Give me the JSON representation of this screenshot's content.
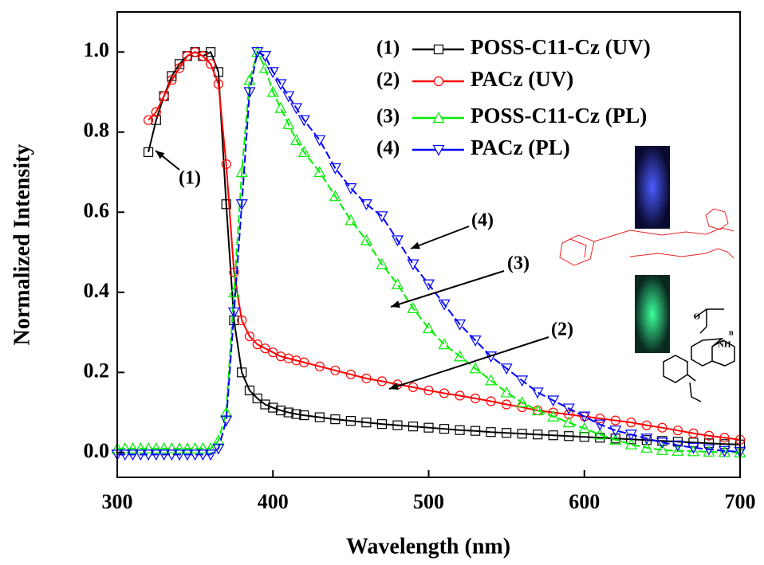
{
  "chart_data": {
    "type": "line",
    "x_label": "Wavelength (nm)",
    "y_label": "Normalized Intensity",
    "xlim": [
      300,
      700
    ],
    "xticks": [
      300,
      400,
      500,
      600,
      700
    ],
    "ylim": [
      -0.062,
      1.1
    ],
    "yticks": [
      {
        "value": 0,
        "label": "0.0"
      },
      {
        "value": 0.2,
        "label": "0.2"
      },
      {
        "value": 0.4,
        "label": "0.4"
      },
      {
        "value": 0.6,
        "label": "0.6"
      },
      {
        "value": 0.8,
        "label": "0.8"
      },
      {
        "value": 1.0,
        "label": "1.0"
      }
    ],
    "legend_position": "upper right",
    "series": [
      {
        "label": "(1)",
        "name": "POSS-C11-Cz (UV)",
        "color": "#000000",
        "marker": "square",
        "x": [
          320,
          325,
          330,
          335,
          340,
          345,
          350,
          355,
          360,
          365,
          370,
          375,
          380,
          385,
          390,
          395,
          400,
          405,
          410,
          415,
          420,
          430,
          440,
          450,
          460,
          470,
          480,
          490,
          500,
          510,
          520,
          530,
          540,
          550,
          560,
          570,
          580,
          590,
          600,
          610,
          620,
          630,
          640,
          650,
          660,
          670,
          680,
          690,
          700
        ],
        "values": [
          0.75,
          0.83,
          0.89,
          0.94,
          0.97,
          0.99,
          1.0,
          0.99,
          1.0,
          0.95,
          0.62,
          0.33,
          0.2,
          0.155,
          0.135,
          0.12,
          0.112,
          0.105,
          0.1,
          0.096,
          0.093,
          0.088,
          0.083,
          0.079,
          0.075,
          0.071,
          0.068,
          0.065,
          0.062,
          0.059,
          0.056,
          0.054,
          0.051,
          0.049,
          0.047,
          0.045,
          0.043,
          0.041,
          0.039,
          0.037,
          0.035,
          0.033,
          0.031,
          0.029,
          0.027,
          0.025,
          0.023,
          0.021,
          0.02
        ]
      },
      {
        "label": "(2)",
        "name": "PACz (UV)",
        "color": "#ff0000",
        "marker": "circle",
        "x": [
          320,
          325,
          330,
          335,
          340,
          345,
          350,
          355,
          360,
          365,
          370,
          375,
          380,
          385,
          390,
          395,
          400,
          405,
          410,
          415,
          420,
          430,
          440,
          450,
          460,
          470,
          480,
          490,
          500,
          510,
          520,
          530,
          540,
          550,
          560,
          570,
          580,
          590,
          600,
          610,
          620,
          630,
          640,
          650,
          660,
          670,
          680,
          690,
          700
        ],
        "values": [
          0.83,
          0.85,
          0.89,
          0.93,
          0.96,
          0.99,
          1.0,
          0.99,
          0.97,
          0.92,
          0.72,
          0.45,
          0.33,
          0.29,
          0.27,
          0.26,
          0.25,
          0.24,
          0.235,
          0.23,
          0.225,
          0.215,
          0.205,
          0.195,
          0.185,
          0.178,
          0.17,
          0.163,
          0.155,
          0.148,
          0.142,
          0.135,
          0.128,
          0.12,
          0.113,
          0.105,
          0.1,
          0.095,
          0.09,
          0.085,
          0.08,
          0.075,
          0.068,
          0.062,
          0.055,
          0.048,
          0.042,
          0.037,
          0.032
        ]
      },
      {
        "label": "(3)",
        "name": "POSS-C11-Cz (PL)",
        "color": "#00ee00",
        "marker": "triangle-up",
        "x": [
          300,
          305,
          310,
          315,
          320,
          325,
          330,
          335,
          340,
          345,
          350,
          355,
          360,
          365,
          370,
          375,
          380,
          385,
          390,
          395,
          400,
          405,
          410,
          415,
          420,
          430,
          440,
          450,
          460,
          470,
          480,
          490,
          500,
          510,
          520,
          530,
          540,
          550,
          560,
          570,
          580,
          590,
          600,
          610,
          620,
          630,
          640,
          650,
          660,
          670,
          680,
          690,
          700
        ],
        "values": [
          0.01,
          0.01,
          0.01,
          0.01,
          0.01,
          0.01,
          0.01,
          0.01,
          0.01,
          0.01,
          0.01,
          0.01,
          0.01,
          0.03,
          0.1,
          0.4,
          0.7,
          0.93,
          1.0,
          0.96,
          0.9,
          0.86,
          0.82,
          0.78,
          0.75,
          0.7,
          0.64,
          0.58,
          0.53,
          0.47,
          0.42,
          0.36,
          0.31,
          0.27,
          0.24,
          0.21,
          0.18,
          0.15,
          0.125,
          0.105,
          0.09,
          0.075,
          0.06,
          0.045,
          0.032,
          0.02,
          0.012,
          0.006,
          0.004,
          0.003,
          0.002,
          0.001,
          0
        ]
      },
      {
        "label": "(4)",
        "name": "PACz (PL)",
        "color": "#0000ff",
        "marker": "triangle-down",
        "x": [
          300,
          305,
          310,
          315,
          320,
          325,
          330,
          335,
          340,
          345,
          350,
          355,
          360,
          365,
          370,
          375,
          380,
          385,
          390,
          395,
          400,
          405,
          410,
          415,
          420,
          430,
          440,
          450,
          460,
          470,
          480,
          490,
          500,
          510,
          520,
          530,
          540,
          550,
          560,
          570,
          580,
          590,
          600,
          610,
          620,
          630,
          640,
          650,
          660,
          670,
          680,
          690,
          700
        ],
        "values": [
          -0.005,
          -0.005,
          -0.005,
          -0.005,
          -0.005,
          -0.005,
          -0.005,
          -0.005,
          -0.005,
          -0.005,
          -0.005,
          -0.005,
          -0.005,
          0.01,
          0.08,
          0.35,
          0.62,
          0.9,
          1.0,
          0.99,
          0.95,
          0.92,
          0.89,
          0.86,
          0.83,
          0.78,
          0.71,
          0.66,
          0.62,
          0.59,
          0.53,
          0.47,
          0.42,
          0.37,
          0.32,
          0.28,
          0.24,
          0.21,
          0.18,
          0.15,
          0.13,
          0.11,
          0.09,
          0.07,
          0.055,
          0.045,
          0.035,
          0.025,
          0.018,
          0.012,
          0.008,
          0.004,
          0.002
        ]
      }
    ],
    "annotations": [
      "(1)",
      "(4)",
      "(3)",
      "(2)"
    ],
    "inset_labels": [
      "O",
      "NH",
      "n"
    ]
  }
}
